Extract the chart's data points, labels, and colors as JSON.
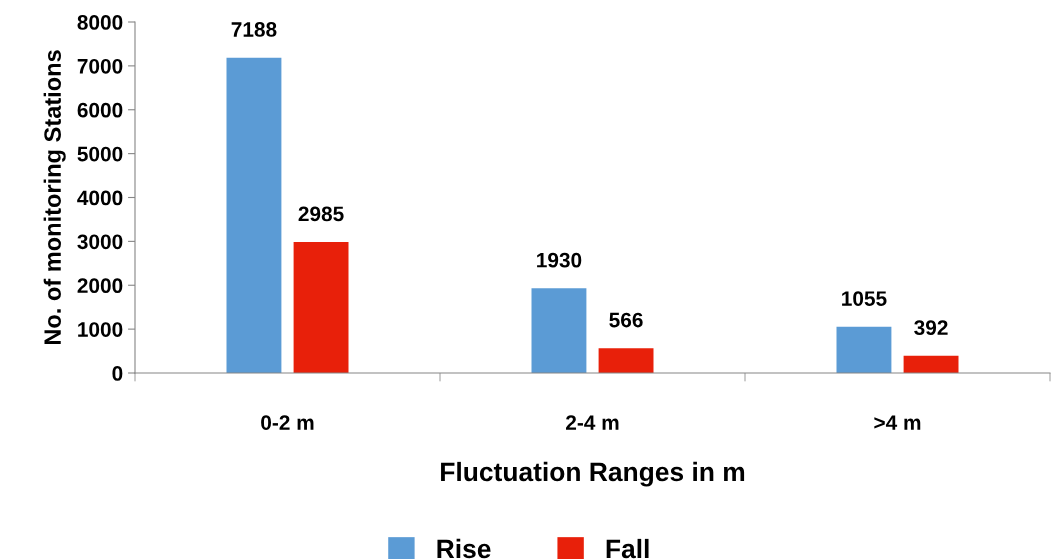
{
  "chart_data": {
    "type": "bar",
    "xlabel": "Fluctuation Ranges in m",
    "ylabel": "No. of monitoring Stations",
    "categories": [
      "0-2 m",
      "2-4 m",
      ">4 m"
    ],
    "series": [
      {
        "name": "Rise",
        "color": "#5b9bd5",
        "values": [
          7188,
          1930,
          1055
        ]
      },
      {
        "name": "Fall",
        "color": "#e8200a",
        "values": [
          2985,
          566,
          392
        ]
      }
    ],
    "ylim": [
      0,
      8000
    ],
    "yticks": [
      0,
      1000,
      2000,
      3000,
      4000,
      5000,
      6000,
      7000,
      8000
    ],
    "data_labels": true,
    "grid": false,
    "legend": "bottom"
  }
}
